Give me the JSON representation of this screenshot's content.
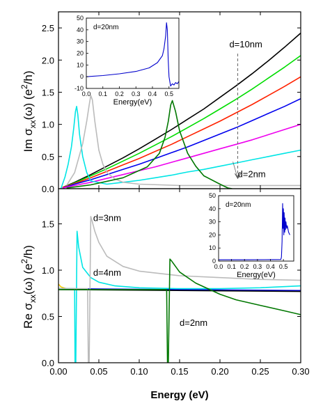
{
  "chart_data": [
    {
      "id": "top",
      "type": "line",
      "ylabel": "Im σxx(ω) (e²/h)",
      "ylabel_parts": {
        "pre": "Im σ",
        "sub": "xx",
        "mid": "(ω) (e",
        "sup": "2",
        "post": "/h)"
      },
      "xlim": [
        0,
        0.3
      ],
      "ylim": [
        0,
        2.75
      ],
      "yticks": [
        "0.0",
        "0.5",
        "1.0",
        "1.5",
        "2.0",
        "2.5"
      ],
      "annotations": [
        {
          "text": "d=10nm",
          "x": 0.232,
          "y": 2.2
        },
        {
          "text": "d=2nm",
          "x": 0.222,
          "y": 0.18
        }
      ],
      "series": [
        {
          "color": "#000000",
          "x": [
            0.005,
            0.02,
            0.04,
            0.06,
            0.08,
            0.1,
            0.12,
            0.14,
            0.16,
            0.18,
            0.2,
            0.22,
            0.24,
            0.26,
            0.28,
            0.3
          ],
          "y": [
            0.02,
            0.1,
            0.22,
            0.35,
            0.48,
            0.62,
            0.77,
            0.92,
            1.08,
            1.24,
            1.42,
            1.6,
            1.79,
            1.99,
            2.2,
            2.42
          ]
        },
        {
          "color": "#00dd00",
          "x": [
            0.005,
            0.02,
            0.04,
            0.06,
            0.08,
            0.1,
            0.12,
            0.14,
            0.16,
            0.18,
            0.2,
            0.22,
            0.24,
            0.26,
            0.28,
            0.3
          ],
          "y": [
            0.02,
            0.09,
            0.2,
            0.31,
            0.43,
            0.55,
            0.68,
            0.81,
            0.95,
            1.09,
            1.24,
            1.39,
            1.55,
            1.72,
            1.89,
            2.07
          ]
        },
        {
          "color": "#ff2200",
          "x": [
            0.005,
            0.02,
            0.04,
            0.06,
            0.08,
            0.1,
            0.12,
            0.14,
            0.16,
            0.18,
            0.2,
            0.22,
            0.24,
            0.26,
            0.28,
            0.3
          ],
          "y": [
            0.02,
            0.08,
            0.17,
            0.27,
            0.37,
            0.47,
            0.58,
            0.69,
            0.81,
            0.93,
            1.05,
            1.18,
            1.31,
            1.45,
            1.59,
            1.74
          ]
        },
        {
          "color": "#0000ee",
          "x": [
            0.005,
            0.02,
            0.04,
            0.06,
            0.08,
            0.1,
            0.12,
            0.14,
            0.16,
            0.18,
            0.2,
            0.22,
            0.24,
            0.26,
            0.28,
            0.3
          ],
          "y": [
            0.01,
            0.07,
            0.14,
            0.22,
            0.3,
            0.38,
            0.47,
            0.56,
            0.65,
            0.75,
            0.85,
            0.95,
            1.06,
            1.17,
            1.28,
            1.4
          ]
        },
        {
          "color": "#ee00ee",
          "x": [
            0.005,
            0.02,
            0.04,
            0.06,
            0.08,
            0.1,
            0.12,
            0.14,
            0.16,
            0.18,
            0.2,
            0.22,
            0.24,
            0.26,
            0.28,
            0.3
          ],
          "y": [
            0.01,
            0.05,
            0.1,
            0.16,
            0.22,
            0.28,
            0.34,
            0.41,
            0.48,
            0.55,
            0.62,
            0.69,
            0.76,
            0.84,
            0.92,
            1.0
          ]
        },
        {
          "color": "#00e5e5",
          "x": [
            0.003,
            0.008,
            0.012,
            0.016,
            0.019,
            0.021,
            0.0225,
            0.024,
            0.026,
            0.03,
            0.035,
            0.04,
            0.06,
            0.08,
            0.1,
            0.12,
            0.14,
            0.16,
            0.18,
            0.2,
            0.22,
            0.24,
            0.26,
            0.28,
            0.3
          ],
          "y": [
            0.0,
            0.18,
            0.38,
            0.65,
            0.95,
            1.2,
            1.28,
            1.15,
            0.85,
            0.5,
            0.25,
            0.12,
            0.07,
            0.1,
            0.13,
            0.17,
            0.21,
            0.26,
            0.3,
            0.35,
            0.4,
            0.45,
            0.5,
            0.55,
            0.6
          ]
        },
        {
          "color": "#bbbbbb",
          "x": [
            0.01,
            0.02,
            0.03,
            0.035,
            0.038,
            0.04,
            0.042,
            0.045,
            0.05,
            0.055,
            0.06,
            0.07,
            0.08,
            0.1,
            0.15,
            0.2,
            0.25,
            0.3
          ],
          "y": [
            0.05,
            0.25,
            0.7,
            1.05,
            1.3,
            1.45,
            1.38,
            1.05,
            0.6,
            0.38,
            0.25,
            0.15,
            0.1,
            0.07,
            0.05,
            0.05,
            0.05,
            0.05
          ]
        },
        {
          "color": "#007700",
          "x": [
            0.01,
            0.04,
            0.08,
            0.11,
            0.125,
            0.132,
            0.136,
            0.139,
            0.141,
            0.145,
            0.15,
            0.16,
            0.17,
            0.18,
            0.2,
            0.21,
            0.215
          ],
          "y": [
            0.01,
            0.06,
            0.17,
            0.34,
            0.55,
            0.8,
            1.05,
            1.3,
            1.37,
            1.2,
            0.9,
            0.55,
            0.35,
            0.2,
            0.07,
            0.01,
            0.0
          ]
        }
      ],
      "inset": {
        "label": "d=20nm",
        "xlabel": "Energy(eV)",
        "xlim": [
          0.0,
          0.56
        ],
        "ylim": [
          -10,
          50
        ],
        "xticks": [
          "0.0",
          "0.1",
          "0.2",
          "0.3",
          "0.4",
          "0.5"
        ],
        "yticks": [
          "-10",
          "0",
          "10",
          "20",
          "30",
          "40",
          "50"
        ],
        "series": [
          {
            "color": "#0000cc",
            "x": [
              0.0,
              0.1,
              0.2,
              0.3,
              0.38,
              0.43,
              0.46,
              0.47,
              0.48,
              0.485,
              0.49,
              0.495,
              0.5,
              0.505,
              0.51,
              0.52,
              0.53,
              0.54,
              0.55,
              0.56
            ],
            "y": [
              0.0,
              1.0,
              2.5,
              4.5,
              7.5,
              12.0,
              18.0,
              24.0,
              35.0,
              46.0,
              40.0,
              15.0,
              0.0,
              -4.0,
              -8.0,
              -6.0,
              -7.0,
              -5.0,
              -6.0,
              -4.0
            ]
          }
        ]
      }
    },
    {
      "id": "bottom",
      "type": "line",
      "xlabel": "Energy (eV)",
      "ylabel": "Re σxx(ω) (e²/h)",
      "ylabel_parts": {
        "pre": "Re σ",
        "sub": "xx",
        "mid": "(ω) (e",
        "sup": "2",
        "post": "/h)"
      },
      "xlim": [
        0,
        0.3
      ],
      "ylim": [
        0,
        1.88
      ],
      "xticks": [
        "0.00",
        "0.05",
        "0.10",
        "0.15",
        "0.20",
        "0.25",
        "0.30"
      ],
      "yticks": [
        "0.0",
        "0.5",
        "1.0",
        "1.5"
      ],
      "annotations": [
        {
          "text": "d=3nm",
          "x": 0.043,
          "y": 1.53
        },
        {
          "text": "d=4nm",
          "x": 0.043,
          "y": 0.94
        },
        {
          "text": "d=2nm",
          "x": 0.15,
          "y": 0.4
        }
      ],
      "series": [
        {
          "color": "#ffcc00",
          "x": [
            0.0,
            0.003,
            0.006,
            0.01
          ],
          "y": [
            0.85,
            0.82,
            0.81,
            0.8
          ]
        },
        {
          "color": "#0000ee",
          "x": [
            0.0,
            0.3
          ],
          "y": [
            0.8,
            0.78
          ]
        },
        {
          "color": "#000000",
          "x": [
            0.0,
            0.3
          ],
          "y": [
            0.79,
            0.77
          ]
        },
        {
          "color": "#00e5e5",
          "x": [
            0.0,
            0.02,
            0.0205,
            0.0215,
            0.023,
            0.025,
            0.03,
            0.04,
            0.05,
            0.07,
            0.1,
            0.15,
            0.2,
            0.25,
            0.3
          ],
          "y": [
            0.8,
            0.8,
            0.0,
            0.0,
            1.42,
            1.25,
            1.03,
            0.92,
            0.87,
            0.83,
            0.81,
            0.8,
            0.8,
            0.81,
            0.83
          ]
        },
        {
          "color": "#bbbbbb",
          "x": [
            0.0,
            0.036,
            0.037,
            0.038,
            0.04,
            0.042,
            0.045,
            0.05,
            0.06,
            0.08,
            0.1,
            0.15,
            0.2,
            0.25,
            0.3
          ],
          "y": [
            0.8,
            0.8,
            0.0,
            0.0,
            1.58,
            1.52,
            1.42,
            1.3,
            1.15,
            1.04,
            0.99,
            0.94,
            0.92,
            0.9,
            0.89
          ]
        },
        {
          "color": "#007700",
          "x": [
            0.0,
            0.134,
            0.135,
            0.136,
            0.138,
            0.14,
            0.145,
            0.15,
            0.17,
            0.2,
            0.22,
            0.25,
            0.28,
            0.3
          ],
          "y": [
            0.79,
            0.79,
            0.0,
            0.0,
            1.12,
            1.1,
            1.04,
            0.98,
            0.86,
            0.74,
            0.68,
            0.62,
            0.56,
            0.52
          ]
        }
      ],
      "inset": {
        "label": "d=20nm",
        "xlabel": "Energy(eV)",
        "xlim": [
          0.0,
          0.58
        ],
        "ylim": [
          0,
          50
        ],
        "xticks": [
          "0.0",
          "0.1",
          "0.2",
          "0.3",
          "0.4",
          "0.5"
        ],
        "yticks": [
          "0",
          "10",
          "20",
          "30",
          "40",
          "50"
        ],
        "series": [
          {
            "color": "#0000cc",
            "x": [
              0.0,
              0.2,
              0.48,
              0.485,
              0.49,
              0.494,
              0.497,
              0.5,
              0.503,
              0.506,
              0.51,
              0.513,
              0.516,
              0.52,
              0.525,
              0.53,
              0.54,
              0.55
            ],
            "y": [
              1.0,
              1.0,
              1.2,
              3.0,
              15.0,
              44.0,
              25.0,
              40.0,
              20.0,
              37.0,
              22.0,
              33.0,
              24.0,
              30.0,
              25.0,
              27.0,
              22.0,
              20.0
            ]
          }
        ]
      }
    }
  ]
}
